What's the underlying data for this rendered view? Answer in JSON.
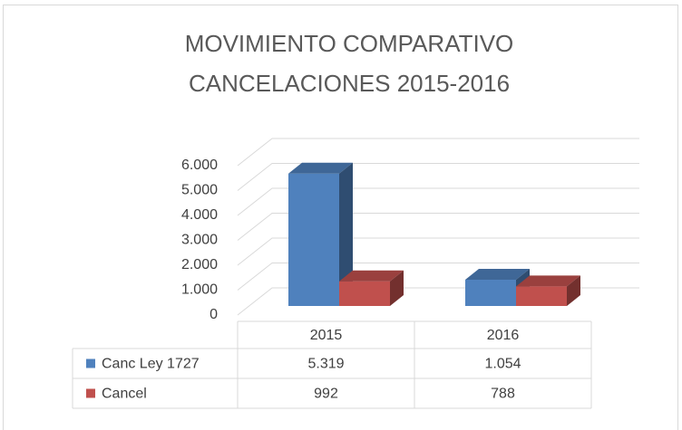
{
  "chart_data": {
    "type": "bar3d",
    "title": [
      "MOVIMIENTO COMPARATIVO",
      "CANCELACIONES 2015-2016"
    ],
    "categories": [
      "2015",
      "2016"
    ],
    "series": [
      {
        "name": "Canc Ley 1727",
        "color": "#4f81bd",
        "values": [
          5319,
          1054
        ],
        "value_labels": [
          "5.319",
          "1.054"
        ]
      },
      {
        "name": "Cancel",
        "color": "#c0504d",
        "values": [
          992,
          788
        ],
        "value_labels": [
          "992",
          "788"
        ]
      }
    ],
    "ylim": [
      0,
      6000
    ],
    "yticks": [
      0,
      {
        "value": 1000,
        "label": "1.000"
      },
      {
        "value": 2000,
        "label": "2.000"
      },
      {
        "value": 3000,
        "label": "3.000"
      },
      {
        "value": 4000,
        "label": "4.000"
      },
      {
        "value": 5000,
        "label": "5.000"
      },
      {
        "value": 6000,
        "label": "6.000"
      }
    ],
    "grid": true
  }
}
